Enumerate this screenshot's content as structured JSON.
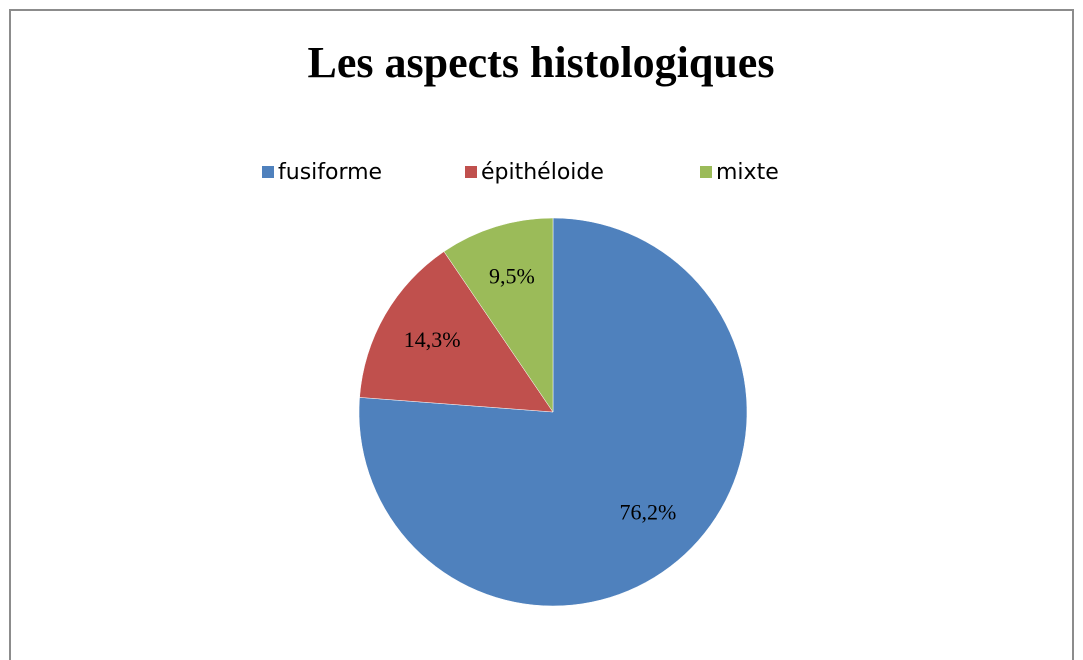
{
  "chart_data": {
    "type": "pie",
    "title": "Les aspects histologiques",
    "categories": [
      "fusiforme",
      "épithéloide",
      "mixte"
    ],
    "values": [
      76.2,
      14.3,
      9.5
    ],
    "value_labels": [
      "76,2%",
      "14,3%",
      "9,5%"
    ],
    "colors": [
      "#4f81bd",
      "#c0504d",
      "#9bbb59"
    ],
    "legend": "top"
  }
}
